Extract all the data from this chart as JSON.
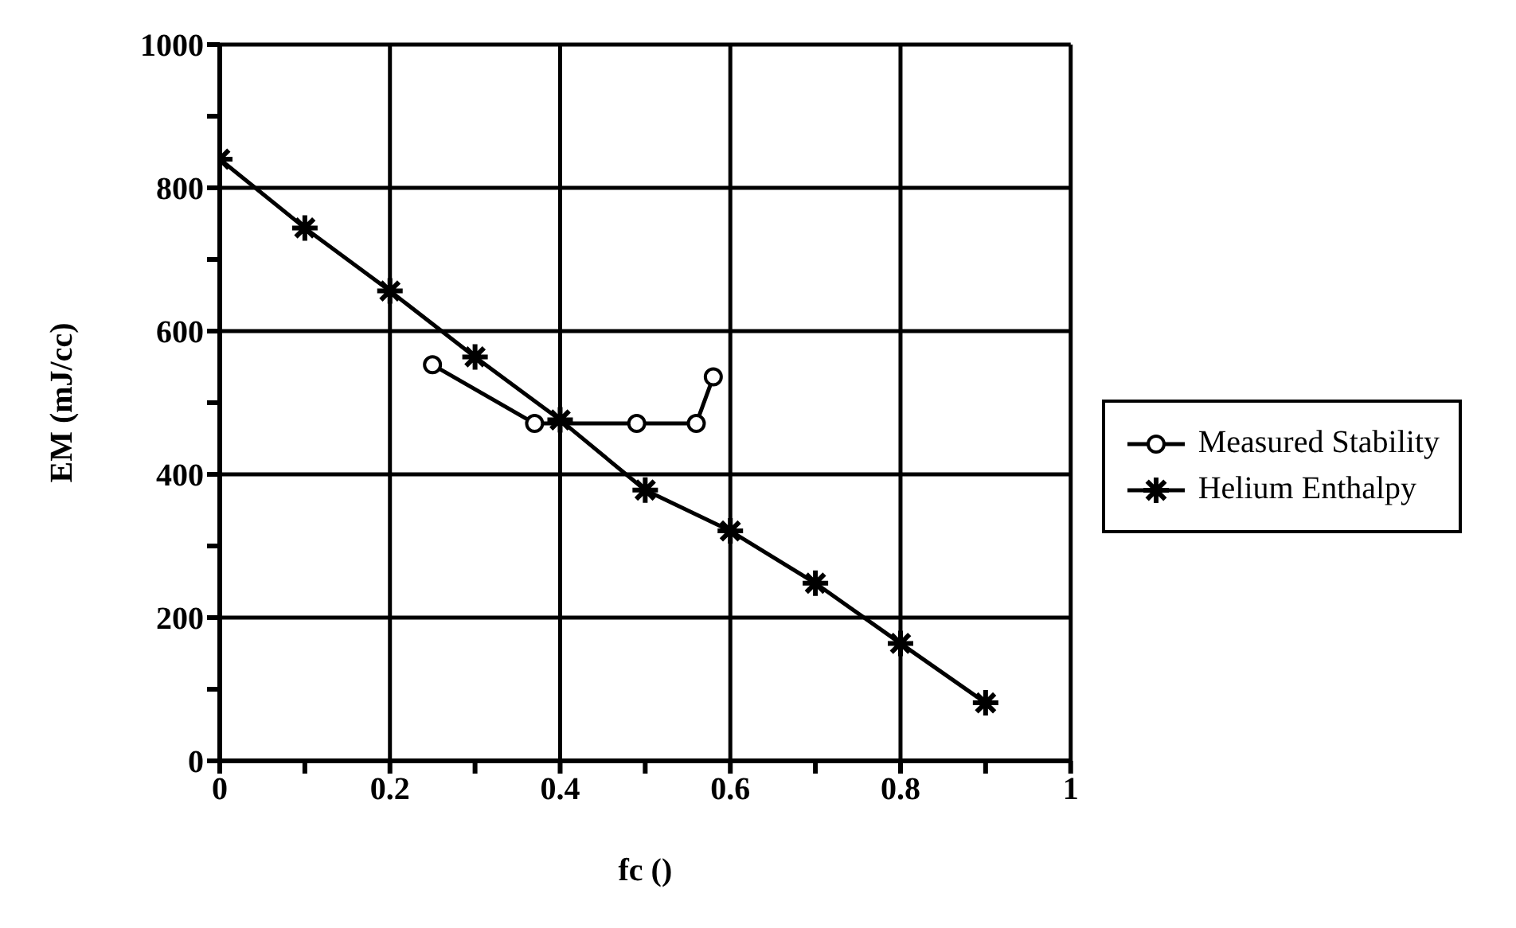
{
  "chart_data": {
    "type": "line",
    "xlabel": "fc ()",
    "ylabel": "EM (mJ/cc)",
    "xlim": [
      0,
      1
    ],
    "ylim": [
      0,
      1000
    ],
    "xticks": [
      0,
      {
        "value": 0.1,
        "label": null
      },
      0.2,
      {
        "value": 0.3,
        "label": null
      },
      0.4,
      {
        "value": 0.5,
        "label": null
      },
      0.6,
      {
        "value": 0.7,
        "label": null
      },
      0.8,
      {
        "value": 0.9,
        "label": null
      },
      1
    ],
    "yticks": [
      0,
      {
        "value": 100,
        "label": null
      },
      200,
      {
        "value": 300,
        "label": null
      },
      400,
      {
        "value": 500,
        "label": null
      },
      600,
      {
        "value": 700,
        "label": null
      },
      800,
      {
        "value": 900,
        "label": null
      },
      1000
    ],
    "grid": true,
    "legend": "right",
    "line_style": "solid",
    "series": [
      {
        "name": "Measured Stability",
        "color": "#000000",
        "marker": "circle",
        "x": [
          0.25,
          0.37,
          0.49,
          0.56,
          0.58
        ],
        "values": [
          553,
          471,
          471,
          471,
          536
        ]
      },
      {
        "name": "Helium Enthalpy",
        "color": "#000000",
        "marker": "cross",
        "x": [
          0,
          0.1,
          0.2,
          0.3,
          0.4,
          0.5,
          0.6,
          0.7,
          0.8,
          0.9
        ],
        "values": [
          840,
          744,
          656,
          564,
          476,
          378,
          321,
          248,
          164,
          81
        ]
      }
    ]
  }
}
